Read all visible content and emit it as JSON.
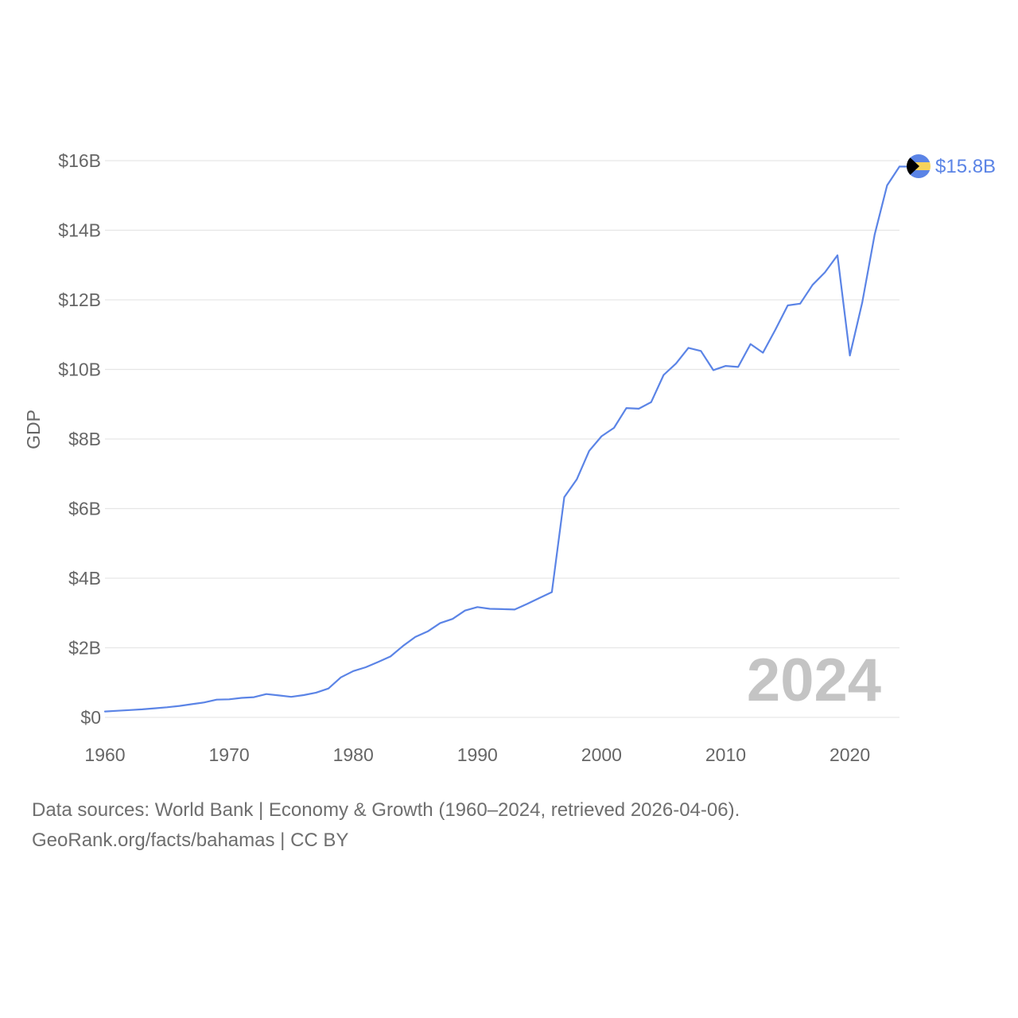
{
  "chart_data": {
    "type": "line",
    "title": "",
    "xlabel": "",
    "ylabel": "GDP",
    "xlim": [
      1960,
      2024
    ],
    "ylim": [
      0,
      16
    ],
    "y_unit": "billion USD",
    "x_ticks": [
      1960,
      1970,
      1980,
      1990,
      2000,
      2010,
      2020
    ],
    "x_tick_labels": [
      "1960",
      "1970",
      "1980",
      "1990",
      "2000",
      "2010",
      "2020"
    ],
    "y_ticks": [
      0,
      2,
      4,
      6,
      8,
      10,
      12,
      14,
      16
    ],
    "y_tick_labels": [
      "$0",
      "$2B",
      "$4B",
      "$6B",
      "$8B",
      "$10B",
      "$12B",
      "$14B",
      "$16B"
    ],
    "grid": true,
    "series": [
      {
        "name": "Bahamas",
        "color": "#5b84e6",
        "x": [
          1960,
          1961,
          1962,
          1963,
          1964,
          1965,
          1966,
          1967,
          1968,
          1969,
          1970,
          1971,
          1972,
          1973,
          1974,
          1975,
          1976,
          1977,
          1978,
          1979,
          1980,
          1981,
          1982,
          1983,
          1984,
          1985,
          1986,
          1987,
          1988,
          1989,
          1990,
          1991,
          1992,
          1993,
          1994,
          1995,
          1996,
          1997,
          1998,
          1999,
          2000,
          2001,
          2002,
          2003,
          2004,
          2005,
          2006,
          2007,
          2008,
          2009,
          2010,
          2011,
          2012,
          2013,
          2014,
          2015,
          2016,
          2017,
          2018,
          2019,
          2020,
          2021,
          2022,
          2023,
          2024
        ],
        "values": [
          0.17,
          0.19,
          0.21,
          0.23,
          0.26,
          0.29,
          0.33,
          0.38,
          0.43,
          0.51,
          0.52,
          0.56,
          0.58,
          0.67,
          0.63,
          0.59,
          0.64,
          0.71,
          0.83,
          1.15,
          1.33,
          1.44,
          1.59,
          1.75,
          2.05,
          2.31,
          2.47,
          2.71,
          2.83,
          3.07,
          3.17,
          3.12,
          3.11,
          3.1,
          3.26,
          3.43,
          3.6,
          6.33,
          6.84,
          7.66,
          8.08,
          8.32,
          8.89,
          8.87,
          9.06,
          9.84,
          10.17,
          10.62,
          10.53,
          9.98,
          10.1,
          10.07,
          10.73,
          10.48,
          11.14,
          11.84,
          11.89,
          12.43,
          12.79,
          13.28,
          10.4,
          11.93,
          13.88,
          15.29,
          15.83
        ]
      }
    ],
    "end_label": "$15.8B",
    "year_label": "2024",
    "flag_colors": {
      "aquamarine": "#5b84e6",
      "gold": "#f6d35b",
      "black": "#000000"
    }
  },
  "footer": {
    "source_line_1": "Data sources: World Bank | Economy & Growth (1960–2024, retrieved 2026-04-06).",
    "source_line_2": "GeoRank.org/facts/bahamas | CC BY"
  }
}
